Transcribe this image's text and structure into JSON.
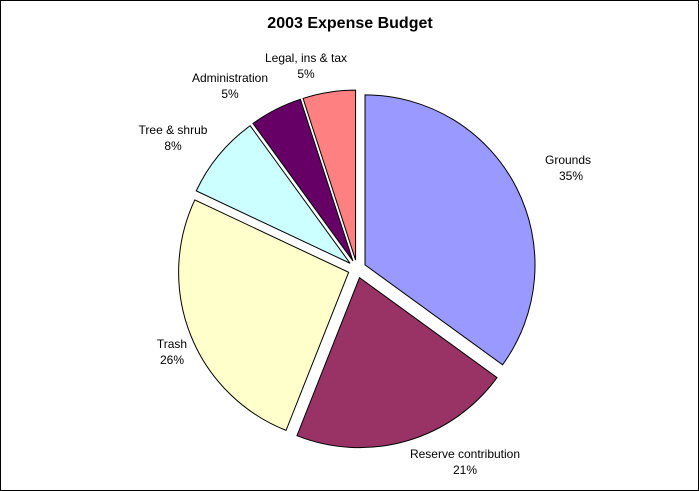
{
  "chart_data": {
    "type": "pie",
    "title": "2003 Expense Budget",
    "exploded": true,
    "legend": "none",
    "slices": [
      {
        "label": "Grounds",
        "pct_text": "35%",
        "value": 35,
        "color": "#9999ff"
      },
      {
        "label": "Reserve contribution",
        "pct_text": "21%",
        "value": 21,
        "color": "#993366"
      },
      {
        "label": "Trash",
        "pct_text": "26%",
        "value": 26,
        "color": "#ffffcc"
      },
      {
        "label": "Tree & shrub",
        "pct_text": "8%",
        "value": 8,
        "color": "#ccffff"
      },
      {
        "label": "Administration",
        "pct_text": "5%",
        "value": 5,
        "color": "#660066"
      },
      {
        "label": "Legal, ins & tax",
        "pct_text": "5%",
        "value": 5,
        "color": "#ff8080"
      }
    ]
  }
}
